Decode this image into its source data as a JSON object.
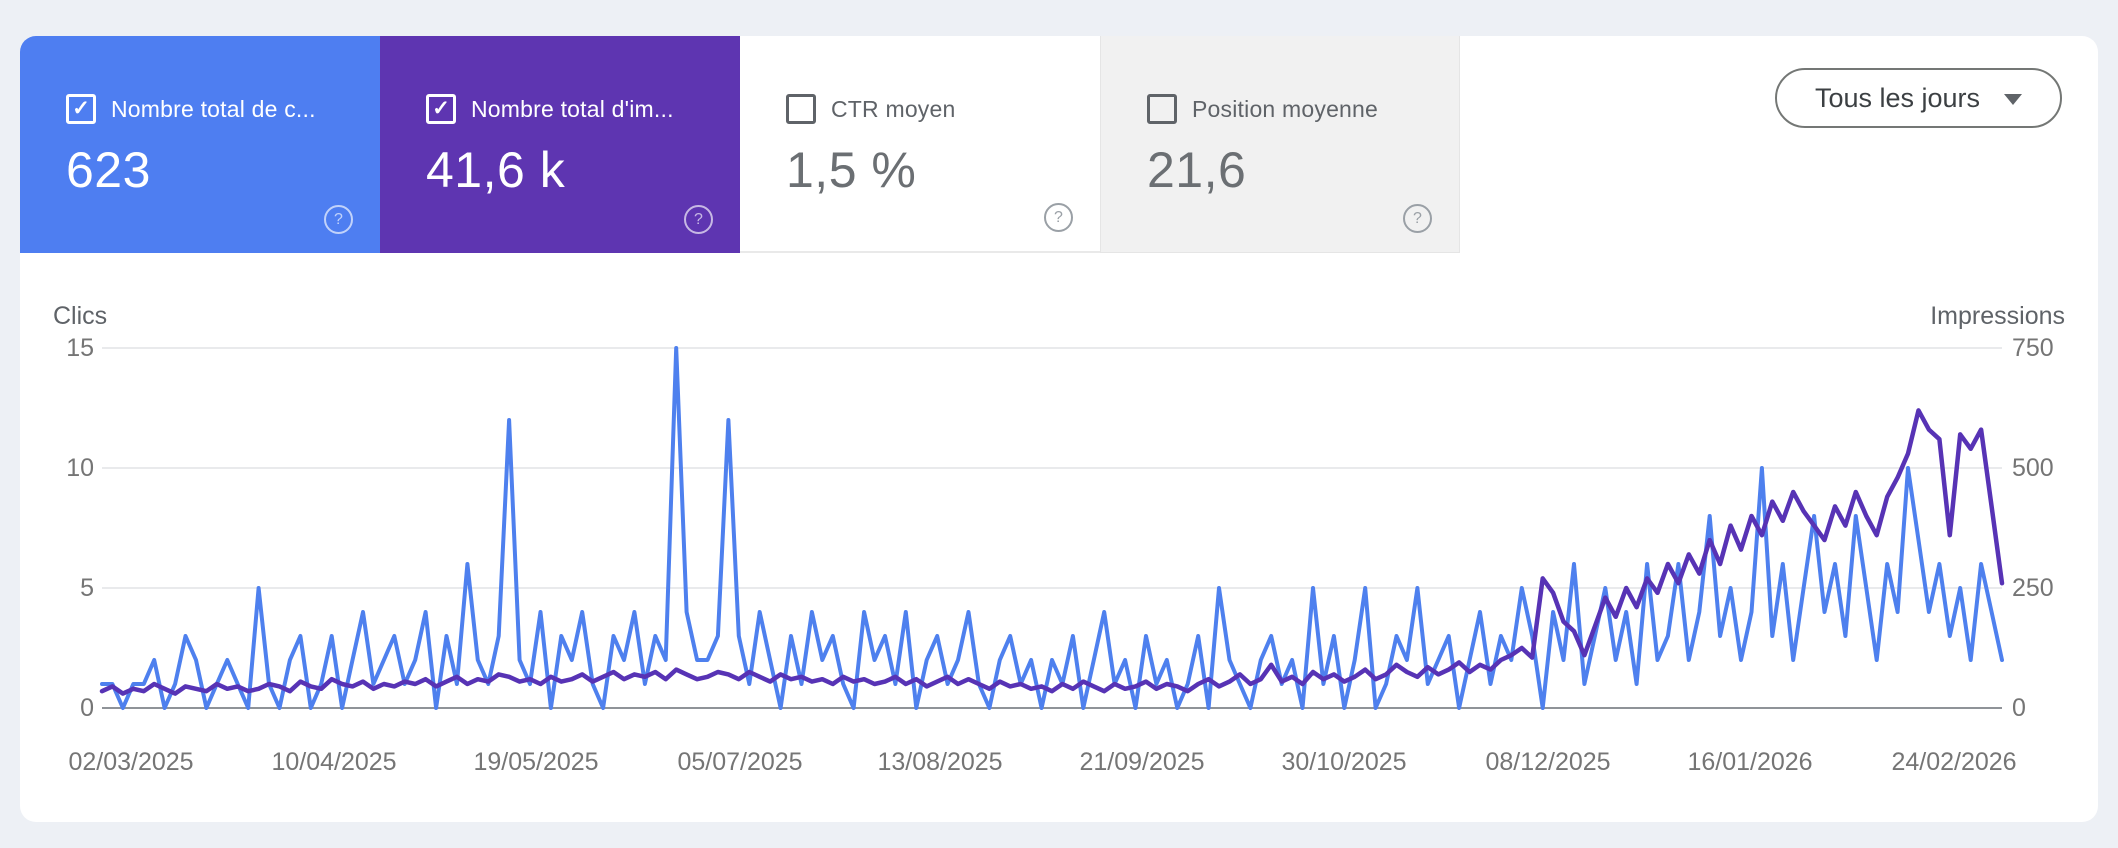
{
  "cards": [
    {
      "label": "Nombre total de c...",
      "value": "623",
      "checked": true,
      "bg": "#4e7ef1"
    },
    {
      "label": "Nombre total d'im...",
      "value": "41,6 k",
      "checked": true,
      "bg": "#5e35b1"
    },
    {
      "label": "CTR moyen",
      "value": "1,5 %",
      "checked": false,
      "bg": "#ffffff"
    },
    {
      "label": "Position moyenne",
      "value": "21,6",
      "checked": false,
      "bg": "#f1f1f1"
    }
  ],
  "date_filter": {
    "label": "Tous les jours"
  },
  "icons": {
    "help": "?",
    "check": "✓"
  },
  "colors": {
    "clicks_accent": "#4e7ef1",
    "impressions_accent": "#5e35b1",
    "page_background": "#edf0f5",
    "gridline": "#e9eaec",
    "zero_axis": "#8f9398",
    "tick_text": "#757575"
  },
  "chart_data": {
    "type": "line",
    "title": "",
    "grid": true,
    "legend": "none",
    "left_axis": {
      "title": "Clics",
      "range": [
        0,
        15
      ],
      "ticks": [
        0,
        5,
        10,
        15
      ]
    },
    "right_axis": {
      "title": "Impressions",
      "range": [
        0,
        750
      ],
      "ticks": [
        0,
        250,
        500,
        750
      ]
    },
    "left_tick_labels": [
      "15",
      "10",
      "5",
      "0"
    ],
    "right_tick_labels": [
      "750",
      "500",
      "250",
      "0"
    ],
    "x_tick_labels": [
      "02/03/2025",
      "10/04/2025",
      "19/05/2025",
      "05/07/2025",
      "13/08/2025",
      "21/09/2025",
      "30/10/2025",
      "08/12/2025",
      "16/01/2026",
      "24/02/2026"
    ],
    "x_range_note": "daily values 02/03/2025 - 01/03/2026, sampled every ~2 days",
    "series": [
      {
        "name": "Clics",
        "axis": "left",
        "color": "#4e80ee",
        "stroke_width": 4,
        "values": [
          1,
          1,
          0,
          1,
          1,
          2,
          0,
          1,
          3,
          2,
          0,
          1,
          2,
          1,
          0,
          5,
          1,
          0,
          2,
          3,
          0,
          1,
          3,
          0,
          2,
          4,
          1,
          2,
          3,
          1,
          2,
          4,
          0,
          3,
          1,
          6,
          2,
          1,
          3,
          12,
          2,
          1,
          4,
          0,
          3,
          2,
          4,
          1,
          0,
          3,
          2,
          4,
          1,
          3,
          2,
          15,
          4,
          2,
          2,
          3,
          12,
          3,
          1,
          4,
          2,
          0,
          3,
          1,
          4,
          2,
          3,
          1,
          0,
          4,
          2,
          3,
          1,
          4,
          0,
          2,
          3,
          1,
          2,
          4,
          1,
          0,
          2,
          3,
          1,
          2,
          0,
          2,
          1,
          3,
          0,
          2,
          4,
          1,
          2,
          0,
          3,
          1,
          2,
          0,
          1,
          3,
          0,
          5,
          2,
          1,
          0,
          2,
          3,
          1,
          2,
          0,
          5,
          1,
          3,
          0,
          2,
          5,
          0,
          1,
          3,
          2,
          5,
          1,
          2,
          3,
          0,
          2,
          4,
          1,
          3,
          2,
          5,
          3,
          0,
          4,
          2,
          6,
          1,
          3,
          5,
          2,
          4,
          1,
          6,
          2,
          3,
          6,
          2,
          4,
          8,
          3,
          5,
          2,
          4,
          10,
          3,
          6,
          2,
          5,
          8,
          4,
          6,
          3,
          8,
          5,
          2,
          6,
          4,
          10,
          7,
          4,
          6,
          3,
          5,
          2,
          6,
          4,
          2
        ]
      },
      {
        "name": "Impressions",
        "axis": "right",
        "color": "#5733b5",
        "stroke_width": 4.5,
        "values": [
          35,
          45,
          30,
          40,
          35,
          50,
          40,
          30,
          45,
          40,
          35,
          50,
          40,
          45,
          35,
          40,
          50,
          45,
          35,
          55,
          45,
          40,
          60,
          50,
          45,
          55,
          40,
          50,
          45,
          55,
          50,
          60,
          45,
          55,
          65,
          50,
          60,
          55,
          70,
          65,
          55,
          60,
          50,
          65,
          55,
          60,
          70,
          55,
          65,
          75,
          60,
          70,
          65,
          75,
          60,
          80,
          70,
          60,
          65,
          75,
          70,
          60,
          75,
          65,
          55,
          70,
          60,
          65,
          55,
          60,
          50,
          65,
          55,
          60,
          50,
          55,
          65,
          50,
          60,
          45,
          55,
          65,
          50,
          60,
          50,
          40,
          55,
          45,
          50,
          40,
          45,
          35,
          50,
          40,
          55,
          45,
          35,
          50,
          40,
          45,
          55,
          40,
          50,
          45,
          35,
          50,
          60,
          45,
          55,
          70,
          50,
          60,
          90,
          55,
          65,
          50,
          75,
          60,
          70,
          55,
          65,
          80,
          60,
          70,
          90,
          75,
          65,
          85,
          70,
          80,
          95,
          75,
          90,
          80,
          100,
          110,
          125,
          105,
          270,
          240,
          180,
          160,
          110,
          170,
          230,
          190,
          250,
          210,
          270,
          240,
          300,
          260,
          320,
          280,
          350,
          300,
          380,
          330,
          400,
          360,
          430,
          390,
          450,
          410,
          380,
          350,
          420,
          380,
          450,
          400,
          360,
          440,
          480,
          530,
          620,
          580,
          560,
          360,
          570,
          540,
          580,
          420,
          260
        ]
      }
    ]
  }
}
